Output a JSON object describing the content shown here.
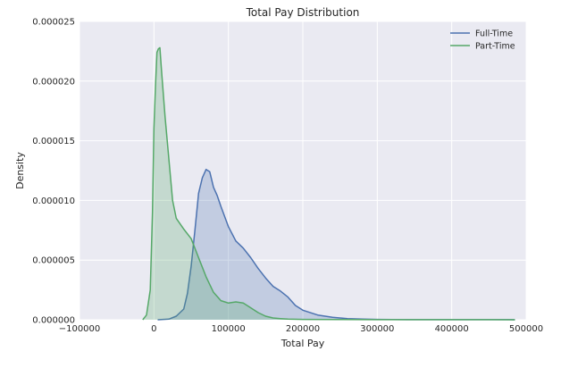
{
  "chart_data": {
    "type": "area",
    "title": "Total Pay Distribution",
    "xlabel": "Total Pay",
    "ylabel": "Density",
    "xlim": [
      -100000,
      500000
    ],
    "ylim": [
      0,
      2.5e-05
    ],
    "xticks": [
      -100000,
      0,
      100000,
      200000,
      300000,
      400000,
      500000
    ],
    "xtick_labels": [
      "−100000",
      "0",
      "100000",
      "200000",
      "300000",
      "400000",
      "500000"
    ],
    "yticks": [
      0,
      5e-06,
      1e-05,
      1.5e-05,
      2e-05,
      2.5e-05
    ],
    "ytick_labels": [
      "0.000000",
      "0.000005",
      "0.000010",
      "0.000015",
      "0.000020",
      "0.000025"
    ],
    "grid": true,
    "legend_position": "top-right",
    "series": [
      {
        "name": "Full-Time",
        "color": "#4c72b0",
        "x": [
          5000,
          20000,
          30000,
          40000,
          45000,
          50000,
          55000,
          60000,
          65000,
          70000,
          75000,
          80000,
          85000,
          90000,
          100000,
          110000,
          120000,
          130000,
          140000,
          150000,
          160000,
          170000,
          180000,
          190000,
          200000,
          220000,
          240000,
          260000,
          280000,
          300000,
          320000,
          340000,
          360000,
          380000,
          400000,
          420000,
          440000,
          460000,
          480000,
          485000
        ],
        "y": [
          0,
          5e-08,
          3e-07,
          9e-07,
          2.2e-06,
          4.5e-06,
          7.5e-06,
          1.06e-05,
          1.19e-05,
          1.26e-05,
          1.24e-05,
          1.11e-05,
          1.04e-05,
          9.5e-06,
          7.8e-06,
          6.6e-06,
          6e-06,
          5.2e-06,
          4.3e-06,
          3.5e-06,
          2.8e-06,
          2.4e-06,
          1.9e-06,
          1.2e-06,
          8e-07,
          4e-07,
          2e-07,
          1e-07,
          5e-08,
          3e-08,
          2e-08,
          1e-08,
          1e-08,
          1e-08,
          1e-08,
          1e-08,
          1e-08,
          1e-08,
          1e-08,
          0
        ]
      },
      {
        "name": "Part-Time",
        "color": "#55a868",
        "x": [
          -15000,
          -10000,
          -5000,
          -2000,
          0,
          2000,
          4000,
          6000,
          8000,
          10000,
          15000,
          20000,
          25000,
          30000,
          40000,
          50000,
          60000,
          70000,
          80000,
          90000,
          100000,
          110000,
          120000,
          130000,
          140000,
          150000,
          160000,
          170000,
          180000,
          200000,
          250000,
          300000,
          350000,
          400000,
          450000,
          485000
        ],
        "y": [
          0,
          4e-07,
          2.5e-06,
          9e-06,
          1.6e-05,
          1.95e-05,
          2.24e-05,
          2.27e-05,
          2.28e-05,
          2.1e-05,
          1.7e-05,
          1.35e-05,
          1e-05,
          8.5e-06,
          7.6e-06,
          6.8e-06,
          5.2e-06,
          3.6e-06,
          2.3e-06,
          1.6e-06,
          1.4e-06,
          1.5e-06,
          1.4e-06,
          1e-06,
          6e-07,
          3e-07,
          1.5e-07,
          1e-07,
          5e-08,
          3e-08,
          2e-08,
          1e-08,
          1e-08,
          1e-08,
          1e-08,
          0
        ]
      }
    ]
  }
}
